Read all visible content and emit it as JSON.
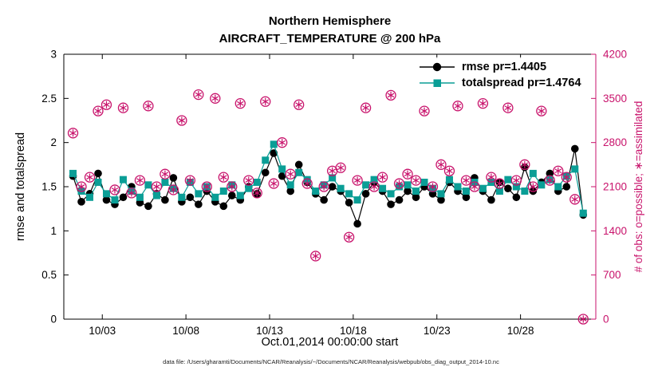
{
  "footer": {
    "datafile": "data file: /Users/gharamti/Documents/NCAR/Reanalysis/~/Documents/NCAR/Reanalysis/webpub/obs_diag_output_2014-10.nc"
  },
  "chart_data": {
    "type": "line",
    "title": "Northern Hemisphere",
    "subtitle": "AIRCRAFT_TEMPERATURE @ 200 hPa",
    "xlabel": "Oct.01,2014 00:00:00 start",
    "ylabel_left": "rmse and totalspread",
    "ylabel_right": "# of obs: o=possible; ∗=assimilated",
    "xlim": [
      -0.3,
      31.5
    ],
    "ylim_left": [
      0,
      3
    ],
    "ylim_right": [
      0,
      4200
    ],
    "yticks_left": [
      0,
      0.5,
      1,
      1.5,
      2,
      2.5,
      3
    ],
    "ytick_labels_left": [
      "0",
      "0.5",
      "1",
      "1.5",
      "2",
      "2.5",
      "3"
    ],
    "yticks_right": [
      0,
      700,
      1400,
      2100,
      2800,
      3500,
      4200
    ],
    "x_ticks": [
      {
        "t": 2,
        "label": "10/03"
      },
      {
        "t": 7,
        "label": "10/08"
      },
      {
        "t": 12,
        "label": "10/13"
      },
      {
        "t": 17,
        "label": "10/18"
      },
      {
        "t": 22,
        "label": "10/23"
      },
      {
        "t": 27,
        "label": "10/28"
      }
    ],
    "x_days": [
      0.25,
      0.75,
      1.25,
      1.75,
      2.25,
      2.75,
      3.25,
      3.75,
      4.25,
      4.75,
      5.25,
      5.75,
      6.25,
      6.75,
      7.25,
      7.75,
      8.25,
      8.75,
      9.25,
      9.75,
      10.25,
      10.75,
      11.25,
      11.75,
      12.25,
      12.75,
      13.25,
      13.75,
      14.25,
      14.75,
      15.25,
      15.75,
      16.25,
      16.75,
      17.25,
      17.75,
      18.25,
      18.75,
      19.25,
      19.75,
      20.25,
      20.75,
      21.25,
      21.75,
      22.25,
      22.75,
      23.25,
      23.75,
      24.25,
      24.75,
      25.25,
      25.75,
      26.25,
      26.75,
      27.25,
      27.75,
      28.25,
      28.75,
      29.25,
      29.75,
      30.25,
      30.75
    ],
    "series": [
      {
        "name": "rmse pr=1.4405",
        "color": "#000000",
        "marker": "circle",
        "values": [
          1.62,
          1.33,
          1.42,
          1.65,
          1.35,
          1.3,
          1.38,
          1.5,
          1.32,
          1.28,
          1.42,
          1.35,
          1.6,
          1.33,
          1.38,
          1.3,
          1.45,
          1.33,
          1.28,
          1.4,
          1.35,
          1.5,
          1.42,
          1.66,
          1.88,
          1.62,
          1.45,
          1.75,
          1.55,
          1.42,
          1.35,
          1.5,
          1.45,
          1.32,
          1.08,
          1.42,
          1.55,
          1.45,
          1.3,
          1.35,
          1.45,
          1.38,
          1.5,
          1.42,
          1.35,
          1.55,
          1.45,
          1.38,
          1.6,
          1.45,
          1.35,
          1.55,
          1.48,
          1.38,
          1.72,
          1.45,
          1.55,
          1.65,
          1.45,
          1.5,
          1.93,
          1.18
        ]
      },
      {
        "name": "totalspread pr=1.4764",
        "color": "#0a9e96",
        "marker": "square",
        "values": [
          1.65,
          1.45,
          1.38,
          1.55,
          1.42,
          1.35,
          1.58,
          1.45,
          1.38,
          1.52,
          1.4,
          1.55,
          1.48,
          1.38,
          1.55,
          1.42,
          1.5,
          1.38,
          1.45,
          1.52,
          1.4,
          1.48,
          1.55,
          1.8,
          1.98,
          1.7,
          1.52,
          1.66,
          1.58,
          1.45,
          1.52,
          1.6,
          1.48,
          1.42,
          1.35,
          1.52,
          1.58,
          1.48,
          1.42,
          1.5,
          1.52,
          1.45,
          1.55,
          1.48,
          1.42,
          1.58,
          1.5,
          1.45,
          1.55,
          1.48,
          1.55,
          1.45,
          1.58,
          1.5,
          1.45,
          1.65,
          1.52,
          1.58,
          1.5,
          1.62,
          1.7,
          1.2
        ]
      }
    ],
    "obs": {
      "color": "#c8126b",
      "possible": [
        2950,
        2100,
        2250,
        3300,
        3400,
        2050,
        3350,
        2000,
        2200,
        3380,
        2100,
        2300,
        2050,
        3150,
        2200,
        3560,
        2100,
        3500,
        2250,
        2100,
        3420,
        2200,
        2000,
        3450,
        2150,
        2800,
        2300,
        3400,
        2150,
        1000,
        2100,
        2350,
        2400,
        1300,
        2200,
        3350,
        2100,
        2250,
        3550,
        2150,
        2300,
        2200,
        3300,
        2100,
        2450,
        2350,
        3380,
        2200,
        2100,
        3420,
        2250,
        2150,
        3350,
        2200,
        2450,
        2100,
        3300,
        2200,
        2350,
        2250,
        1900,
        0
      ],
      "assimilated": [
        2950,
        2100,
        2250,
        3300,
        3400,
        2050,
        3350,
        2000,
        2200,
        3380,
        2100,
        2300,
        2050,
        3150,
        2200,
        3560,
        2100,
        3500,
        2250,
        2100,
        3420,
        2200,
        2000,
        3450,
        2150,
        2800,
        2300,
        3400,
        2150,
        1000,
        2100,
        2350,
        2400,
        1300,
        2200,
        3350,
        2100,
        2250,
        3550,
        2150,
        2300,
        2200,
        3300,
        2100,
        2450,
        2350,
        3380,
        2200,
        2100,
        3420,
        2250,
        2150,
        3350,
        2200,
        2450,
        2100,
        3300,
        2200,
        2350,
        2250,
        1900,
        0
      ]
    }
  }
}
